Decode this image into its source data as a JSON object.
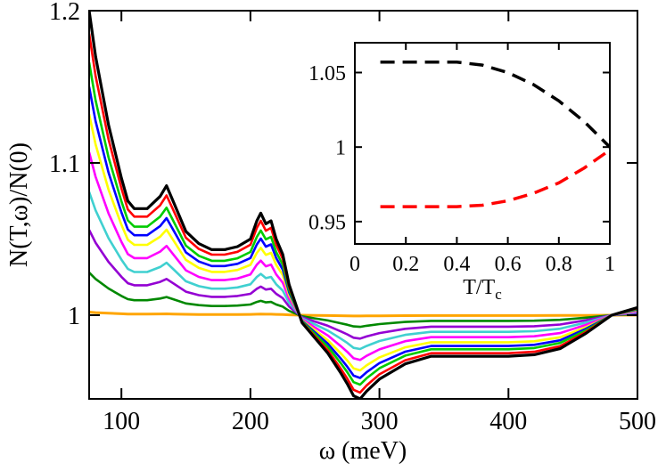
{
  "chart_data": [
    {
      "type": "line",
      "xlabel": "ω (meV)",
      "ylabel": "N(T,ω)/N(0)",
      "xlim": [
        75,
        500
      ],
      "ylim": [
        0.945,
        1.2
      ],
      "xticks": [
        100,
        200,
        300,
        400,
        500
      ],
      "yticks": [
        1,
        1.1,
        1.2
      ],
      "xtick_labels": [
        "100",
        "200",
        "300",
        "400",
        "500"
      ],
      "ytick_labels": [
        "1",
        "1.1",
        "1.2"
      ],
      "x": [
        75,
        80,
        90,
        100,
        105,
        110,
        120,
        130,
        135,
        140,
        150,
        160,
        170,
        180,
        190,
        200,
        205,
        208,
        212,
        216,
        220,
        225,
        230,
        240,
        250,
        260,
        270,
        275,
        280,
        285,
        290,
        300,
        320,
        340,
        360,
        380,
        400,
        420,
        440,
        460,
        480,
        500
      ],
      "base": [
        1.0,
        1.0,
        1.0,
        1.0,
        1.0,
        1.0,
        1.0,
        1.0,
        1.0,
        1.0,
        1.0,
        1.0,
        1.0,
        1.0,
        1.0,
        1.0,
        1.0,
        1.0,
        1.0,
        1.0,
        1.0,
        1.0,
        1.0,
        1.0,
        1.0,
        1.0,
        1.0,
        1.0,
        1.0,
        1.0,
        1.0,
        1.0,
        1.0,
        1.0,
        1.0,
        1.0,
        1.0,
        1.0,
        1.0,
        1.0,
        1.0,
        1.0
      ],
      "shape": [
        0.2,
        0.17,
        0.125,
        0.09,
        0.075,
        0.07,
        0.07,
        0.078,
        0.085,
        0.075,
        0.055,
        0.047,
        0.043,
        0.043,
        0.045,
        0.05,
        0.062,
        0.067,
        0.06,
        0.062,
        0.05,
        0.04,
        0.02,
        -0.005,
        -0.015,
        -0.025,
        -0.038,
        -0.045,
        -0.053,
        -0.055,
        -0.05,
        -0.042,
        -0.032,
        -0.027,
        -0.027,
        -0.027,
        -0.027,
        -0.026,
        -0.022,
        -0.012,
        0.0,
        0.005
      ],
      "series": [
        {
          "color": "#000000",
          "scale": 1.0,
          "width": 3.2
        },
        {
          "color": "#ff0000",
          "scale": 0.925,
          "width": 2.6
        },
        {
          "color": "#00cc00",
          "scale": 0.83,
          "width": 2.6
        },
        {
          "color": "#0000ff",
          "scale": 0.75,
          "width": 2.6
        },
        {
          "color": "#ffff00",
          "scale": 0.66,
          "width": 2.6
        },
        {
          "color": "#ff00ff",
          "scale": 0.535,
          "width": 2.6
        },
        {
          "color": "#40d0d0",
          "scale": 0.405,
          "width": 2.6
        },
        {
          "color": "#9400d3",
          "scale": 0.28,
          "width": 2.6
        },
        {
          "color": "#008800",
          "scale": 0.14,
          "width": 2.6
        },
        {
          "color": "#ffa500",
          "scale": 0.01,
          "width": 3.0
        }
      ]
    },
    {
      "type": "line",
      "xlabel": "T/T",
      "xlabel_sub": "c",
      "xlim": [
        0,
        1
      ],
      "ylim": [
        0.935,
        1.07
      ],
      "xticks": [
        0,
        0.2,
        0.4,
        0.6,
        0.8,
        1
      ],
      "yticks": [
        0.95,
        1,
        1.05
      ],
      "xtick_labels": [
        "0",
        "0.2",
        "0.4",
        "0.6",
        "0.8",
        "1"
      ],
      "ytick_labels": [
        "0.95",
        "1",
        "1.05"
      ],
      "series": [
        {
          "color": "#000000",
          "x": [
            0.1,
            0.2,
            0.3,
            0.4,
            0.5,
            0.6,
            0.7,
            0.8,
            0.9,
            1.0
          ],
          "y": [
            1.057,
            1.057,
            1.057,
            1.057,
            1.055,
            1.05,
            1.042,
            1.031,
            1.017,
            1.0
          ]
        },
        {
          "color": "#ff0000",
          "x": [
            0.1,
            0.2,
            0.3,
            0.4,
            0.5,
            0.6,
            0.7,
            0.8,
            0.9,
            1.0
          ],
          "y": [
            0.96,
            0.96,
            0.96,
            0.96,
            0.961,
            0.964,
            0.969,
            0.976,
            0.986,
            0.998
          ]
        }
      ]
    }
  ]
}
